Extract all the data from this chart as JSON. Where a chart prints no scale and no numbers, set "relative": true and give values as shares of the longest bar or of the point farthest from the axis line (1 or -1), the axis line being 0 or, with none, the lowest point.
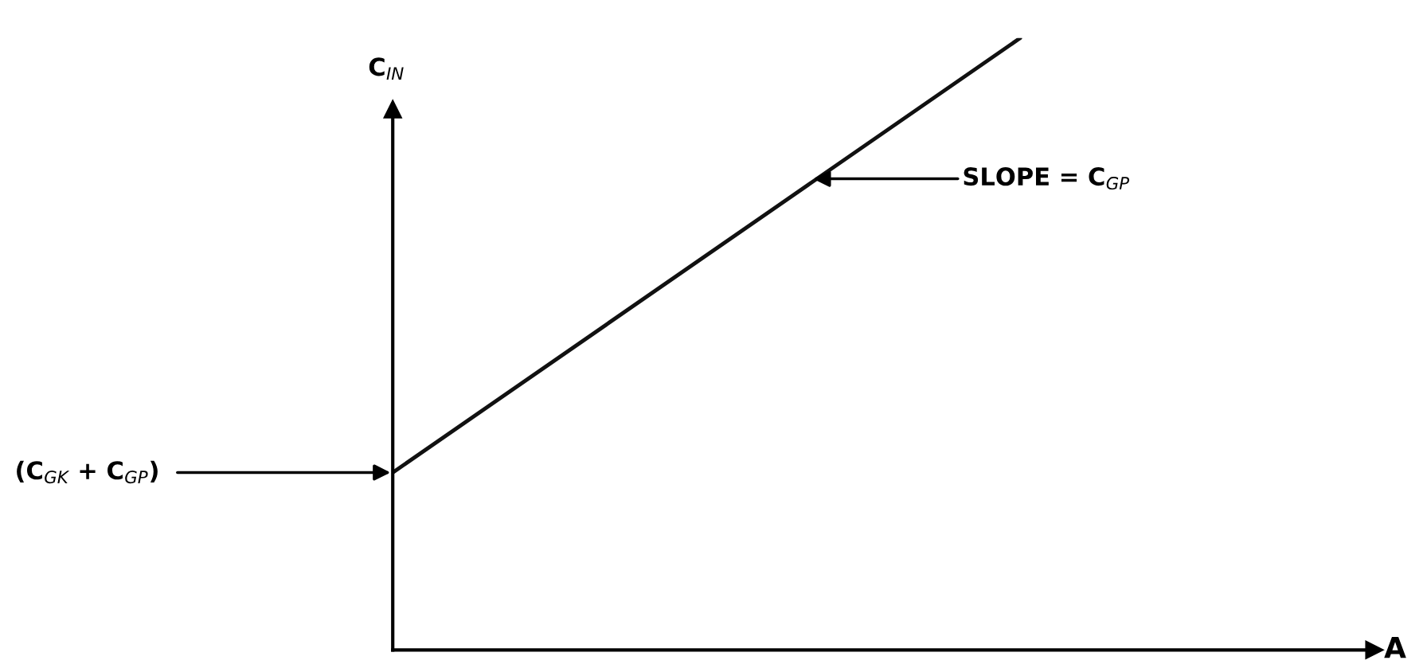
{
  "chart_data": {
    "type": "line",
    "relative": true,
    "categories": [
      null,
      null
    ],
    "series": [
      {
        "color": "#111111",
        "values": [
          0.29,
          1.0
        ]
      }
    ],
    "xlabel": "A",
    "ylabel": "C$_{IN}$",
    "annotations": [
      "(C$_{GK}$ + C$_{GP}$)",
      "SLOPE = C$_{GP}$"
    ],
    "grid": false,
    "legend": false,
    "marker": "none",
    "line_style": "solid"
  }
}
